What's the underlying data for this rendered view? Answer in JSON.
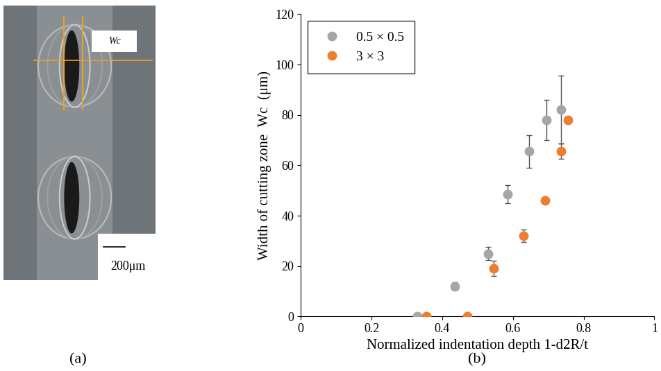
{
  "chart_data": {
    "type": "scatter",
    "x_label": "Normalized indentation depth 1-d2R/t",
    "y_label": "Width of cutting zone  Wc  (μm)",
    "annotations": [
      "(b)"
    ],
    "series": [
      {
        "name": "0.5 × 0.5",
        "color": "#a6a6a6",
        "marker": "circle",
        "x": [
          0.33,
          0.435,
          0.53,
          0.585,
          0.645,
          0.695,
          0.735
        ],
        "values": [
          0,
          12,
          25,
          48.5,
          65.5,
          78,
          82
        ],
        "error": [
          0,
          1.5,
          2.5,
          3.5,
          6.5,
          8,
          13.5
        ]
      },
      {
        "name": "3 × 3",
        "color": "#ed7d31",
        "marker": "circle",
        "x": [
          0.355,
          0.47,
          0.545,
          0.63,
          0.69,
          0.735,
          0.755
        ],
        "values": [
          0,
          0,
          19,
          32,
          46,
          65.5,
          78
        ],
        "error": [
          0,
          0,
          3,
          2.5,
          0,
          3,
          0
        ]
      }
    ],
    "xlim": [
      0,
      1
    ],
    "xticks": [
      0,
      0.2,
      0.4,
      0.6,
      0.8,
      1
    ],
    "ylim": [
      0,
      120
    ],
    "yticks": [
      0,
      20,
      40,
      60,
      80,
      100,
      120
    ],
    "grid": false,
    "legend": "upper left"
  },
  "photo": {
    "caption": "(a)",
    "width_label": "Wc",
    "scale_bar": "200μm"
  }
}
